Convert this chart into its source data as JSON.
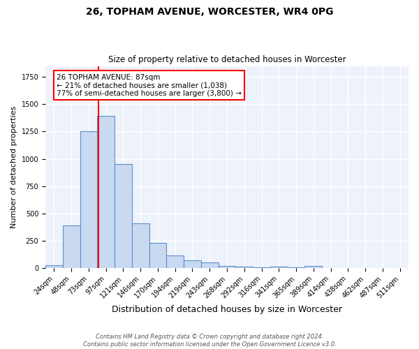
{
  "title1": "26, TOPHAM AVENUE, WORCESTER, WR4 0PG",
  "title2": "Size of property relative to detached houses in Worcester",
  "xlabel": "Distribution of detached houses by size in Worcester",
  "ylabel": "Number of detached properties",
  "categories": [
    "24sqm",
    "48sqm",
    "73sqm",
    "97sqm",
    "121sqm",
    "146sqm",
    "170sqm",
    "194sqm",
    "219sqm",
    "243sqm",
    "268sqm",
    "292sqm",
    "316sqm",
    "341sqm",
    "365sqm",
    "389sqm",
    "414sqm",
    "438sqm",
    "462sqm",
    "487sqm",
    "511sqm"
  ],
  "values": [
    25,
    390,
    1255,
    1395,
    955,
    410,
    228,
    115,
    68,
    50,
    20,
    10,
    8,
    12,
    5,
    22,
    0,
    0,
    0,
    0,
    0
  ],
  "bar_color": "#c9d9f0",
  "bar_edge_color": "#5b8fcc",
  "bg_color": "#eef2fb",
  "grid_color": "#ffffff",
  "vline_color": "red",
  "annotation_line1": "26 TOPHAM AVENUE: 87sqm",
  "annotation_line2": "← 21% of detached houses are smaller (1,038)",
  "annotation_line3": "77% of semi-detached houses are larger (3,800) →",
  "annotation_box_edge": "red",
  "annotation_fontsize": 7.5,
  "footnote1": "Contains HM Land Registry data © Crown copyright and database right 2024.",
  "footnote2": "Contains public sector information licensed under the Open Government Licence v3.0.",
  "ylim": [
    0,
    1850
  ],
  "title1_fontsize": 10,
  "title2_fontsize": 8.5,
  "xlabel_fontsize": 9,
  "ylabel_fontsize": 8
}
